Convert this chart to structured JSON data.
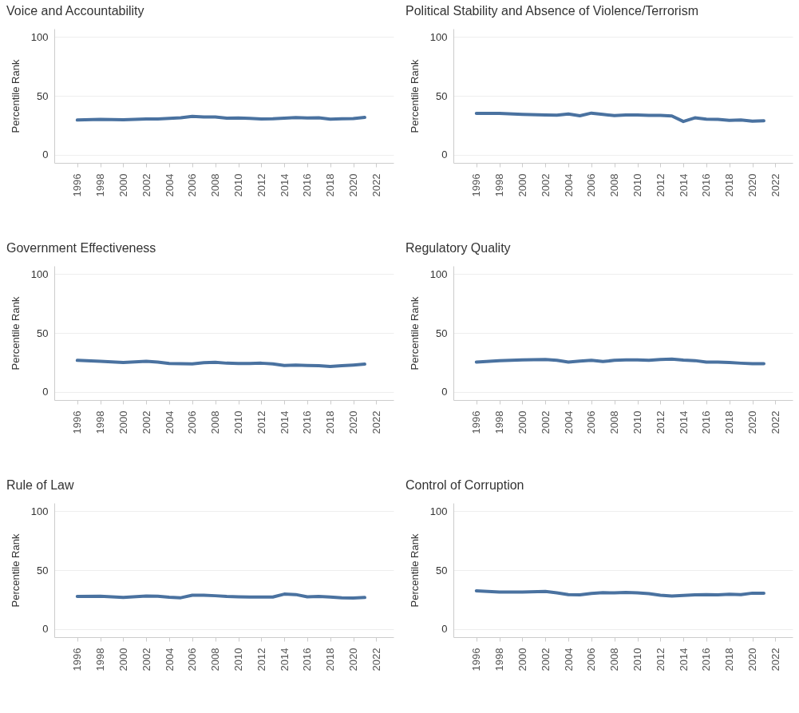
{
  "chart_data": [
    {
      "type": "line",
      "title": "Voice and Accountability",
      "ylabel": "Percentile Rank",
      "x": [
        1996,
        1998,
        2000,
        2002,
        2003,
        2004,
        2005,
        2006,
        2007,
        2008,
        2009,
        2010,
        2011,
        2012,
        2013,
        2014,
        2015,
        2016,
        2017,
        2018,
        2019,
        2020,
        2021
      ],
      "values": [
        29.4,
        30,
        29.6,
        30.4,
        30.4,
        30.8,
        31.3,
        32.5,
        32.1,
        32,
        31,
        31.2,
        30.8,
        30.3,
        30.5,
        31,
        31.5,
        31.2,
        31.3,
        30.1,
        30.5,
        30.7,
        31.6
      ],
      "color": "#4a72a0",
      "xlim": [
        1994,
        2023.5
      ],
      "xticks": [
        1996,
        1998,
        2000,
        2002,
        2004,
        2006,
        2008,
        2010,
        2012,
        2014,
        2016,
        2018,
        2020,
        2022
      ],
      "ylim": [
        -7,
        107
      ],
      "yticks": [
        0,
        50,
        100
      ],
      "grid": "y"
    },
    {
      "type": "line",
      "title": "Political Stability and Absence of Violence/Terrorism",
      "ylabel": "Percentile Rank",
      "x": [
        1996,
        1998,
        2000,
        2002,
        2003,
        2004,
        2005,
        2006,
        2007,
        2008,
        2009,
        2010,
        2011,
        2012,
        2013,
        2014,
        2015,
        2016,
        2017,
        2018,
        2019,
        2020,
        2021
      ],
      "values": [
        35,
        35,
        34.2,
        33.7,
        33.5,
        34.6,
        33,
        35.3,
        34.2,
        33.2,
        33.7,
        33.7,
        33.3,
        33.3,
        32.9,
        28.2,
        31.3,
        30.2,
        30,
        29.2,
        29.4,
        28.4,
        28.8
      ],
      "color": "#4a72a0",
      "xlim": [
        1994,
        2023.5
      ],
      "xticks": [
        1996,
        1998,
        2000,
        2002,
        2004,
        2006,
        2008,
        2010,
        2012,
        2014,
        2016,
        2018,
        2020,
        2022
      ],
      "ylim": [
        -7,
        107
      ],
      "yticks": [
        0,
        50,
        100
      ],
      "grid": "y"
    },
    {
      "type": "line",
      "title": "Government Effectiveness",
      "ylabel": "Percentile Rank",
      "x": [
        1996,
        1998,
        2000,
        2002,
        2003,
        2004,
        2005,
        2006,
        2007,
        2008,
        2009,
        2010,
        2011,
        2012,
        2013,
        2014,
        2015,
        2016,
        2017,
        2018,
        2019,
        2020,
        2021
      ],
      "values": [
        26.7,
        25.9,
        24.9,
        25.9,
        25.3,
        24.1,
        23.9,
        23.7,
        24.7,
        25.1,
        24.3,
        24.1,
        24.1,
        24.3,
        23.7,
        22.3,
        22.7,
        22.3,
        22.1,
        21.5,
        22.1,
        22.7,
        23.5
      ],
      "color": "#4a72a0",
      "xlim": [
        1994,
        2023.5
      ],
      "xticks": [
        1996,
        1998,
        2000,
        2002,
        2004,
        2006,
        2008,
        2010,
        2012,
        2014,
        2016,
        2018,
        2020,
        2022
      ],
      "ylim": [
        -7,
        107
      ],
      "yticks": [
        0,
        50,
        100
      ],
      "grid": "y"
    },
    {
      "type": "line",
      "title": "Regulatory Quality",
      "ylabel": "Percentile Rank",
      "x": [
        1996,
        1998,
        2000,
        2002,
        2003,
        2004,
        2005,
        2006,
        2007,
        2008,
        2009,
        2010,
        2011,
        2012,
        2013,
        2014,
        2015,
        2016,
        2017,
        2018,
        2019,
        2020,
        2021
      ],
      "values": [
        25.3,
        26.5,
        27.1,
        27.5,
        26.7,
        25.3,
        26.1,
        26.7,
        25.7,
        26.7,
        27.1,
        27.1,
        26.7,
        27.5,
        27.7,
        26.9,
        26.5,
        25.3,
        25.3,
        24.9,
        24.3,
        23.9,
        23.9
      ],
      "color": "#4a72a0",
      "xlim": [
        1994,
        2023.5
      ],
      "xticks": [
        1996,
        1998,
        2000,
        2002,
        2004,
        2006,
        2008,
        2010,
        2012,
        2014,
        2016,
        2018,
        2020,
        2022
      ],
      "ylim": [
        -7,
        107
      ],
      "yticks": [
        0,
        50,
        100
      ],
      "grid": "y"
    },
    {
      "type": "line",
      "title": "Rule of Law",
      "ylabel": "Percentile Rank",
      "x": [
        1996,
        1998,
        2000,
        2002,
        2003,
        2004,
        2005,
        2006,
        2007,
        2008,
        2009,
        2010,
        2011,
        2012,
        2013,
        2014,
        2015,
        2016,
        2017,
        2018,
        2019,
        2020,
        2021
      ],
      "values": [
        27.6,
        27.8,
        26.7,
        28,
        27.8,
        26.9,
        26.5,
        28.6,
        28.6,
        28.2,
        27.6,
        27.3,
        27.1,
        27.1,
        27.1,
        29.6,
        29.2,
        27.3,
        27.6,
        27.1,
        26.5,
        26.3,
        26.7
      ],
      "color": "#4a72a0",
      "xlim": [
        1994,
        2023.5
      ],
      "xticks": [
        1996,
        1998,
        2000,
        2002,
        2004,
        2006,
        2008,
        2010,
        2012,
        2014,
        2016,
        2018,
        2020,
        2022
      ],
      "ylim": [
        -7,
        107
      ],
      "yticks": [
        0,
        50,
        100
      ],
      "grid": "y"
    },
    {
      "type": "line",
      "title": "Control of Corruption",
      "ylabel": "Percentile Rank",
      "x": [
        1996,
        1998,
        2000,
        2002,
        2003,
        2004,
        2005,
        2006,
        2007,
        2008,
        2009,
        2010,
        2011,
        2012,
        2013,
        2014,
        2015,
        2016,
        2017,
        2018,
        2019,
        2020,
        2021
      ],
      "values": [
        32.4,
        31.4,
        31.4,
        31.8,
        30.6,
        29.2,
        29,
        30.2,
        30.8,
        30.6,
        31,
        30.6,
        30,
        28.6,
        28,
        28.4,
        29,
        29.2,
        29,
        29.4,
        29.2,
        30.4,
        30.4
      ],
      "color": "#4a72a0",
      "xlim": [
        1994,
        2023.5
      ],
      "xticks": [
        1996,
        1998,
        2000,
        2002,
        2004,
        2006,
        2008,
        2010,
        2012,
        2014,
        2016,
        2018,
        2020,
        2022
      ],
      "ylim": [
        -7,
        107
      ],
      "yticks": [
        0,
        50,
        100
      ],
      "grid": "y"
    }
  ]
}
